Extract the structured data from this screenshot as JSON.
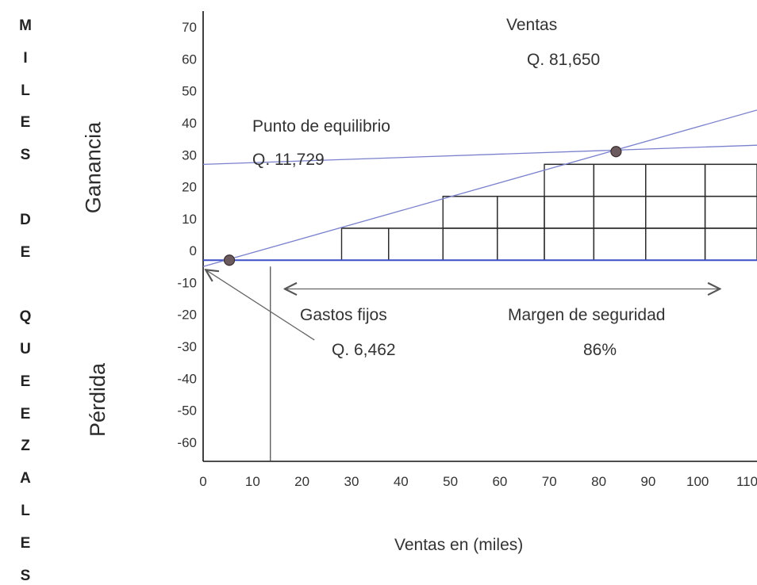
{
  "y_axis_title_letters": [
    "M",
    "I",
    "L",
    "E",
    "S",
    "",
    "D",
    "E",
    "",
    "Q",
    "U",
    "E",
    "E",
    "Z",
    "A",
    "L",
    "E",
    "S"
  ],
  "zones": {
    "profit": "Ganancia",
    "loss": "Pérdida"
  },
  "annotations": {
    "sales_label": "Ventas",
    "sales_value": "Q. 81,650",
    "breakeven_label": "Punto de equilibrio",
    "breakeven_value": "Q. 11,729",
    "fixed_costs_label": "Gastos fijos",
    "fixed_costs_value": "Q. 6,462",
    "margin_label": "Margen de seguridad",
    "margin_value": "86%"
  },
  "chart_data": {
    "type": "line",
    "xlabel": "Ventas en (miles)",
    "x_ticks": [
      0,
      10,
      20,
      30,
      40,
      50,
      60,
      70,
      80,
      90,
      100,
      110
    ],
    "y_ticks": [
      70,
      60,
      50,
      40,
      30,
      20,
      10,
      0,
      -10,
      -20,
      -30,
      -40,
      -50,
      -60
    ],
    "xlim": [
      0,
      112
    ],
    "ylim": [
      -66,
      75
    ],
    "grid": false,
    "series": [
      {
        "x": [
          0,
          112
        ],
        "y": [
          -5,
          44
        ]
      },
      {
        "x": [
          0,
          112
        ],
        "y": [
          27,
          33
        ]
      }
    ],
    "points": [
      {
        "x": 5.3,
        "y": -3
      },
      {
        "x": 83.5,
        "y": 31
      }
    ],
    "reference_lines": [
      {
        "orientation": "vertical",
        "x": 13.6,
        "y_from": -66,
        "y_to": -5
      },
      {
        "orientation": "horizontal",
        "y": -3,
        "x_from": 0,
        "x_to": 112
      }
    ],
    "margin_arrow": {
      "x_from": 16.5,
      "x_to": 104.5,
      "y": -12
    },
    "fixed_cost_arrow": {
      "from": [
        22.5,
        -28
      ],
      "to": [
        0.5,
        -6
      ]
    },
    "blocks": [
      {
        "y_bottom": -3,
        "y_top": 7,
        "x_edges": [
          28,
          37.5,
          48.5,
          59.5,
          69,
          79,
          89.5,
          101.5,
          112
        ]
      },
      {
        "y_bottom": 7,
        "y_top": 17,
        "x_edges": [
          48.5,
          59.5,
          69,
          79,
          89.5,
          101.5,
          112
        ]
      },
      {
        "y_bottom": 17,
        "y_top": 27,
        "x_edges": [
          69,
          79,
          89.5,
          101.5,
          112
        ]
      }
    ]
  }
}
